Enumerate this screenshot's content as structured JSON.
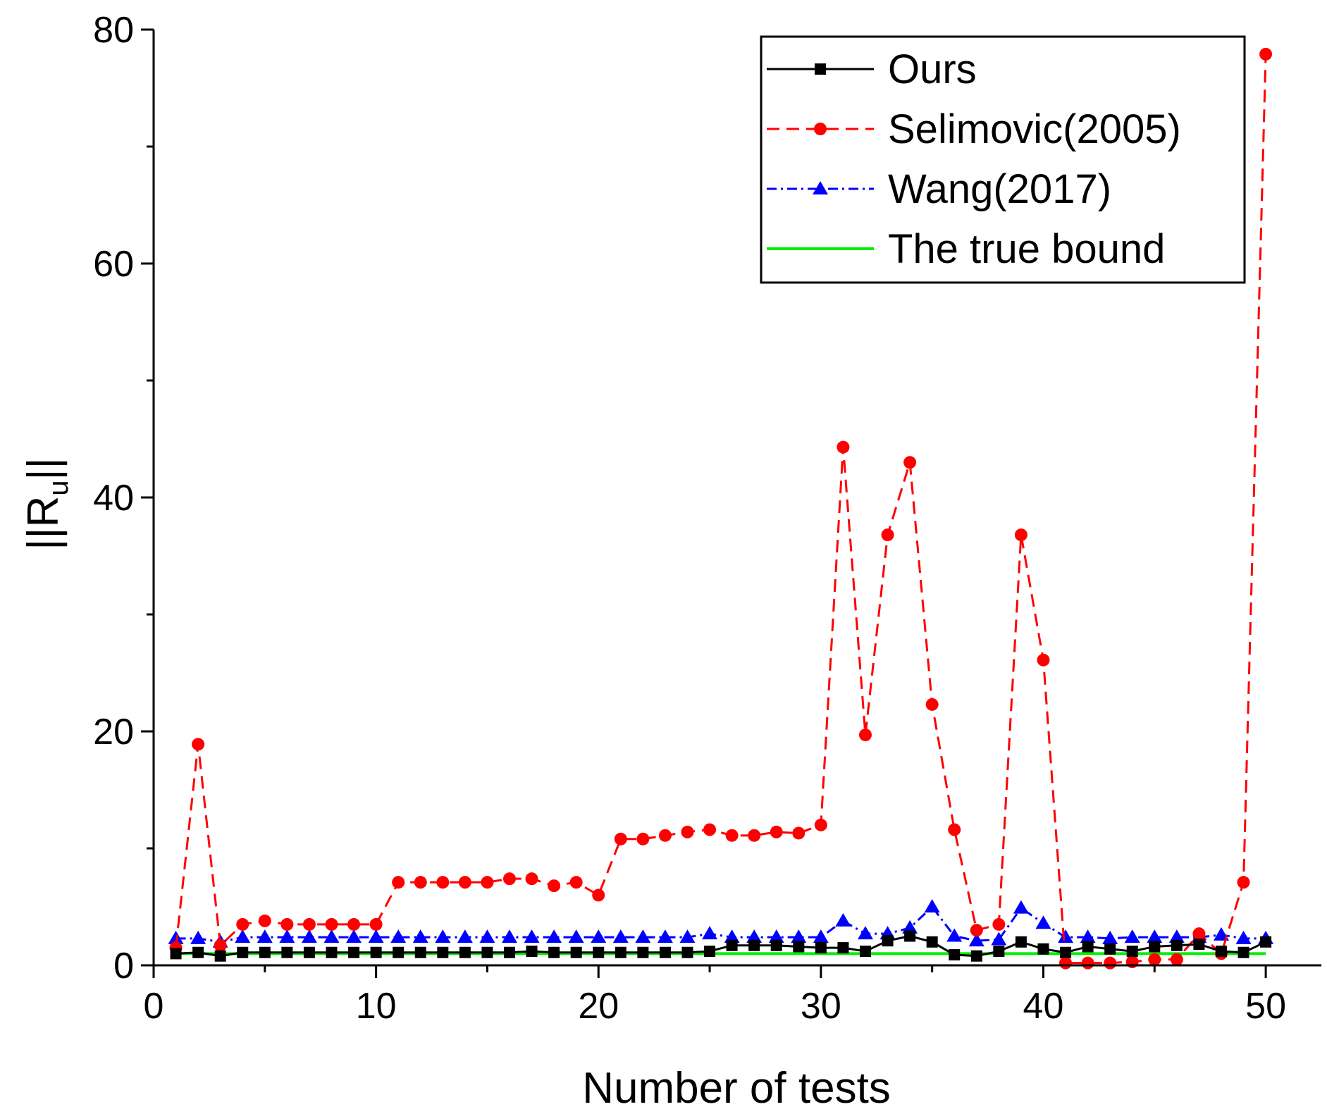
{
  "chart_data": {
    "type": "line",
    "title": "",
    "xlabel": "Number of tests",
    "ylabel_main": "||R",
    "ylabel_sub": "u",
    "ylabel_end": "||",
    "xlim": [
      0,
      52.5
    ],
    "ylim": [
      0,
      80
    ],
    "xticks": [
      0,
      10,
      20,
      30,
      40,
      50
    ],
    "yticks": [
      0,
      20,
      40,
      60,
      80
    ],
    "x_minor_step": 5,
    "y_minor_step": 10,
    "grid": false,
    "legend_position": "top-right",
    "x": [
      1,
      2,
      3,
      4,
      5,
      6,
      7,
      8,
      9,
      10,
      11,
      12,
      13,
      14,
      15,
      16,
      17,
      18,
      19,
      20,
      21,
      22,
      23,
      24,
      25,
      26,
      27,
      28,
      29,
      30,
      31,
      32,
      33,
      34,
      35,
      36,
      37,
      38,
      39,
      40,
      41,
      42,
      43,
      44,
      45,
      46,
      47,
      48,
      49,
      50
    ],
    "series": [
      {
        "name": "Ours",
        "color": "#000000",
        "dash": "solid",
        "marker": "square",
        "values": [
          1.0,
          1.1,
          0.8,
          1.1,
          1.1,
          1.1,
          1.1,
          1.1,
          1.1,
          1.1,
          1.1,
          1.1,
          1.1,
          1.1,
          1.1,
          1.1,
          1.2,
          1.1,
          1.1,
          1.1,
          1.1,
          1.1,
          1.1,
          1.1,
          1.2,
          1.7,
          1.7,
          1.7,
          1.6,
          1.5,
          1.5,
          1.2,
          2.1,
          2.5,
          2.0,
          0.9,
          0.8,
          1.2,
          2.0,
          1.4,
          1.1,
          1.6,
          1.4,
          1.2,
          1.6,
          1.7,
          1.8,
          1.2,
          1.1,
          2.0
        ]
      },
      {
        "name": "Selimovic(2005)",
        "color": "#ff0000",
        "dash": "dashed",
        "marker": "circle",
        "values": [
          1.5,
          18.9,
          1.7,
          3.5,
          3.8,
          3.5,
          3.5,
          3.5,
          3.5,
          3.5,
          7.1,
          7.1,
          7.1,
          7.1,
          7.1,
          7.4,
          7.4,
          6.8,
          7.1,
          6.0,
          10.8,
          10.8,
          11.1,
          11.4,
          11.6,
          11.1,
          11.1,
          11.4,
          11.3,
          12.0,
          44.3,
          19.7,
          36.8,
          43.0,
          22.3,
          11.6,
          3.0,
          3.5,
          36.8,
          26.1,
          0.2,
          0.2,
          0.2,
          0.3,
          0.5,
          0.5,
          2.7,
          1.0,
          7.1,
          77.9
        ]
      },
      {
        "name": "Wang(2017)",
        "color": "#0000ff",
        "dash": "dashdot",
        "marker": "triangle",
        "values": [
          2.3,
          2.3,
          2.0,
          2.4,
          2.4,
          2.4,
          2.4,
          2.4,
          2.4,
          2.4,
          2.4,
          2.4,
          2.4,
          2.4,
          2.4,
          2.4,
          2.4,
          2.4,
          2.4,
          2.4,
          2.4,
          2.4,
          2.4,
          2.4,
          2.7,
          2.4,
          2.4,
          2.4,
          2.4,
          2.4,
          3.8,
          2.7,
          2.7,
          3.2,
          5.0,
          2.5,
          2.1,
          2.2,
          4.9,
          3.6,
          2.4,
          2.4,
          2.3,
          2.4,
          2.4,
          2.4,
          2.4,
          2.6,
          2.3,
          2.3
        ]
      },
      {
        "name": "The true bound",
        "color": "#00ee00",
        "dash": "solid",
        "marker": "none",
        "values": [
          1,
          1,
          1,
          1,
          1,
          1,
          1,
          1,
          1,
          1,
          1,
          1,
          1,
          1,
          1,
          1,
          1,
          1,
          1,
          1,
          1,
          1,
          1,
          1,
          1,
          1,
          1,
          1,
          1,
          1,
          1,
          1,
          1,
          1,
          1,
          1,
          1,
          1,
          1,
          1,
          1,
          1,
          1,
          1,
          1,
          1,
          1,
          1,
          1,
          1
        ]
      }
    ]
  }
}
